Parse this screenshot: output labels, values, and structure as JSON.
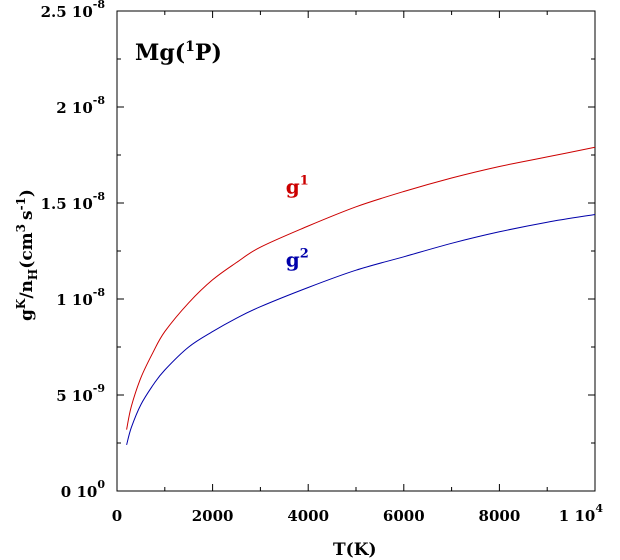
{
  "chart_data": {
    "type": "line",
    "title": {
      "element": "Mg",
      "state_open": "(",
      "state_sup": "1",
      "state_main": "P",
      "state_close": ")"
    },
    "xlabel": "T(K)",
    "ylabel": {
      "g": "g",
      "g_sup": "K",
      "slash": "/",
      "n": "n",
      "n_sub": "H",
      "open": "(",
      "cm": "cm",
      "cm_sup": "3",
      "s": "s",
      "s_sup": "-1",
      "close": ")"
    },
    "xlim": [
      0,
      10000
    ],
    "ylim": [
      0,
      2.5e-08
    ],
    "x_ticks": [
      {
        "value": 0,
        "label": "0"
      },
      {
        "value": 2000,
        "label": "2000"
      },
      {
        "value": 4000,
        "label": "4000"
      },
      {
        "value": 6000,
        "label": "6000"
      },
      {
        "value": 8000,
        "label": "8000"
      },
      {
        "value": 10000,
        "label": "1 10",
        "sup": "4"
      }
    ],
    "y_ticks": [
      {
        "value": 0,
        "label": "0 10",
        "sup": "0"
      },
      {
        "value": 5e-09,
        "label": "5 10",
        "sup": "-9"
      },
      {
        "value": 1e-08,
        "label": "1 10",
        "sup": "-8"
      },
      {
        "value": 1.5e-08,
        "label": "1.5 10",
        "sup": "-8"
      },
      {
        "value": 2e-08,
        "label": "2 10",
        "sup": "-8"
      },
      {
        "value": 2.5e-08,
        "label": "2.5 10",
        "sup": "-8"
      }
    ],
    "series": [
      {
        "name": "g1",
        "label_main": "g",
        "label_sup": "1",
        "color": "#cc0000",
        "x": [
          200,
          300,
          500,
          750,
          1000,
          1500,
          2000,
          2500,
          3000,
          4000,
          5000,
          6000,
          7000,
          8000,
          9000,
          10000
        ],
        "y": [
          3.2e-09,
          4.4e-09,
          5.9e-09,
          7.2e-09,
          8.3e-09,
          9.8e-09,
          1.1e-08,
          1.19e-08,
          1.27e-08,
          1.38e-08,
          1.48e-08,
          1.56e-08,
          1.63e-08,
          1.69e-08,
          1.74e-08,
          1.79e-08
        ]
      },
      {
        "name": "g2",
        "label_main": "g",
        "label_sup": "2",
        "color": "#0000aa",
        "x": [
          200,
          300,
          500,
          750,
          1000,
          1500,
          2000,
          2500,
          3000,
          4000,
          5000,
          6000,
          7000,
          8000,
          9000,
          10000
        ],
        "y": [
          2.4e-09,
          3.3e-09,
          4.5e-09,
          5.5e-09,
          6.3e-09,
          7.5e-09,
          8.3e-09,
          9e-09,
          9.6e-09,
          1.06e-08,
          1.15e-08,
          1.22e-08,
          1.29e-08,
          1.35e-08,
          1.4e-08,
          1.44e-08
        ]
      }
    ],
    "series_labels": [
      {
        "series": 0,
        "x": 3950,
        "y": 1.55e-08
      },
      {
        "series": 1,
        "x": 3950,
        "y": 1.17e-08
      }
    ],
    "grid": false,
    "legend": "none"
  }
}
